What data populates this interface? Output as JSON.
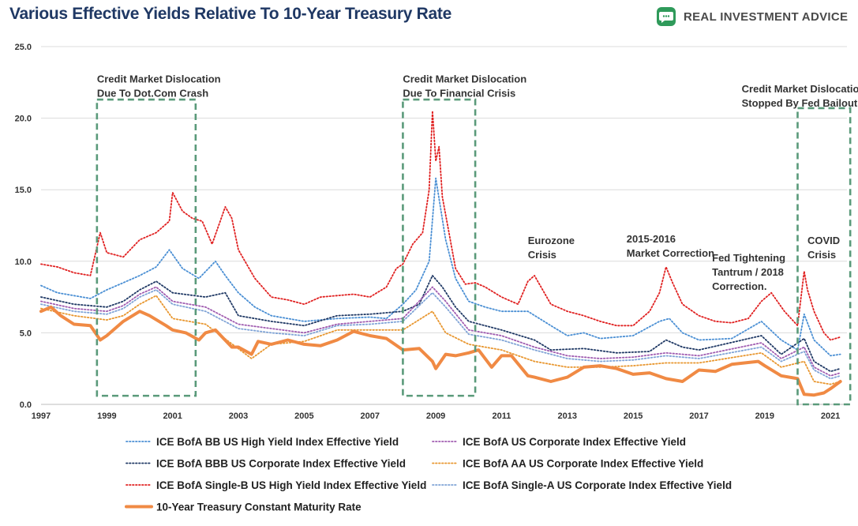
{
  "header": {
    "brand": "REAL INVESTMENT ADVICE",
    "brand_icon": "chat-bubble-icon"
  },
  "chart_data": {
    "type": "line",
    "title": "Various Effective Yields Relative To 10-Year Treasury Rate",
    "xlim": [
      1997,
      2021.5
    ],
    "ylim": [
      0,
      25
    ],
    "x_ticks": [
      "1997",
      "1999",
      "2001",
      "2003",
      "2005",
      "2007",
      "2009",
      "2011",
      "2013",
      "2015",
      "2017",
      "2019",
      "2021"
    ],
    "y_ticks": [
      "0.0",
      "5.0",
      "10.0",
      "15.0",
      "20.0",
      "25.0"
    ],
    "grid": "horizontal",
    "legend_position": "bottom",
    "series": [
      {
        "name": "ICE BofA Single-B US High Yield Index Effective Yield",
        "color": "#e02020",
        "style": "dotted",
        "x": [
          1997,
          1997.5,
          1998,
          1998.5,
          1998.8,
          1999,
          1999.5,
          2000,
          2000.5,
          2000.9,
          2001,
          2001.3,
          2001.6,
          2001.9,
          2002.2,
          2002.6,
          2002.8,
          2003,
          2003.5,
          2004,
          2004.5,
          2005,
          2005.5,
          2006,
          2006.5,
          2007,
          2007.5,
          2007.8,
          2008,
          2008.3,
          2008.6,
          2008.8,
          2008.9,
          2009.0,
          2009.1,
          2009.2,
          2009.4,
          2009.6,
          2009.9,
          2010.2,
          2010.5,
          2011,
          2011.5,
          2011.8,
          2012,
          2012.5,
          2013,
          2013.5,
          2014,
          2014.5,
          2015,
          2015.5,
          2015.8,
          2016.0,
          2016.2,
          2016.5,
          2017,
          2017.5,
          2018,
          2018.5,
          2018.9,
          2019.2,
          2019.6,
          2020.0,
          2020.2,
          2020.3,
          2020.5,
          2020.8,
          2021.0,
          2021.3
        ],
        "values": [
          9.8,
          9.6,
          9.2,
          9.0,
          12.0,
          10.6,
          10.3,
          11.5,
          12.0,
          12.8,
          14.8,
          13.5,
          13.0,
          12.8,
          11.2,
          13.8,
          13.0,
          10.8,
          8.8,
          7.5,
          7.3,
          7.0,
          7.5,
          7.6,
          7.7,
          7.5,
          8.2,
          9.5,
          9.8,
          11.2,
          12.0,
          15.0,
          20.5,
          17.0,
          18.0,
          14.5,
          12.0,
          9.5,
          8.4,
          8.5,
          8.2,
          7.5,
          7.0,
          8.6,
          9.0,
          7.0,
          6.5,
          6.2,
          5.8,
          5.5,
          5.5,
          6.5,
          7.8,
          9.6,
          8.5,
          7.0,
          6.2,
          5.8,
          5.7,
          6.0,
          7.2,
          7.8,
          6.5,
          5.5,
          9.3,
          8.0,
          6.5,
          5.0,
          4.5,
          4.7
        ]
      },
      {
        "name": "ICE BofA BB US High Yield Index Effective Yield",
        "color": "#4a8fd4",
        "style": "dotted",
        "x": [
          1997,
          1997.5,
          1998,
          1998.5,
          1999,
          1999.5,
          2000,
          2000.5,
          2000.9,
          2001.3,
          2001.8,
          2002.3,
          2002.6,
          2003,
          2003.5,
          2004,
          2005,
          2006,
          2007,
          2007.5,
          2008,
          2008.4,
          2008.8,
          2009.0,
          2009.3,
          2009.6,
          2010,
          2010.5,
          2011,
          2011.8,
          2012.5,
          2013,
          2013.5,
          2014,
          2015,
          2015.8,
          2016.1,
          2016.5,
          2017,
          2018,
          2018.9,
          2019.5,
          2020.0,
          2020.2,
          2020.5,
          2021.0,
          2021.3
        ],
        "values": [
          8.3,
          7.8,
          7.6,
          7.4,
          8.0,
          8.5,
          9.0,
          9.6,
          10.8,
          9.5,
          8.8,
          10.0,
          9.0,
          7.8,
          6.8,
          6.2,
          5.8,
          6.0,
          6.1,
          6.0,
          7.0,
          8.0,
          10.0,
          15.8,
          11.5,
          8.8,
          7.2,
          6.8,
          6.5,
          6.5,
          5.5,
          4.8,
          5.0,
          4.6,
          4.8,
          5.8,
          6.0,
          5.0,
          4.5,
          4.6,
          5.8,
          4.5,
          3.8,
          6.3,
          4.5,
          3.4,
          3.5
        ]
      },
      {
        "name": "ICE BofA BBB US Corporate Index Effective Yield",
        "color": "#1f3864",
        "style": "dotted",
        "x": [
          1997,
          1998,
          1999,
          1999.5,
          2000,
          2000.5,
          2001,
          2002,
          2002.6,
          2003,
          2004,
          2005,
          2006,
          2007,
          2008,
          2008.5,
          2008.9,
          2009.2,
          2009.6,
          2010,
          2011,
          2012,
          2012.5,
          2013.5,
          2014.5,
          2015.5,
          2016.0,
          2016.5,
          2017,
          2018.9,
          2019.5,
          2020.2,
          2020.5,
          2021.0,
          2021.3
        ],
        "values": [
          7.5,
          7.0,
          6.8,
          7.2,
          8.0,
          8.6,
          7.8,
          7.5,
          7.8,
          6.2,
          5.8,
          5.5,
          6.2,
          6.3,
          6.5,
          7.0,
          9.0,
          8.2,
          6.8,
          5.8,
          5.2,
          4.5,
          3.8,
          3.9,
          3.6,
          3.7,
          4.5,
          4.0,
          3.8,
          4.8,
          3.5,
          4.6,
          3.0,
          2.3,
          2.5
        ]
      },
      {
        "name": "ICE BofA US Corporate Index Effective Yield",
        "color": "#a05cb0",
        "style": "dotted",
        "x": [
          1997,
          1998,
          1999,
          1999.5,
          2000,
          2000.5,
          2001,
          2002,
          2003,
          2004,
          2005,
          2006,
          2007,
          2008,
          2008.9,
          2009.3,
          2010,
          2011,
          2012,
          2013,
          2014,
          2015,
          2016,
          2017,
          2018.9,
          2019.5,
          2020.2,
          2020.5,
          2021.0,
          2021.3
        ],
        "values": [
          7.2,
          6.7,
          6.5,
          6.9,
          7.7,
          8.2,
          7.2,
          6.8,
          5.6,
          5.3,
          5.0,
          5.6,
          5.8,
          6.0,
          8.2,
          7.2,
          5.2,
          4.8,
          4.0,
          3.4,
          3.2,
          3.3,
          3.6,
          3.4,
          4.3,
          3.2,
          4.0,
          2.6,
          2.0,
          2.2
        ]
      },
      {
        "name": "ICE BofA Single-A US Corporate Index Effective Yield",
        "color": "#7fa3d6",
        "style": "dotted",
        "x": [
          1997,
          1998,
          1999,
          1999.5,
          2000,
          2000.5,
          2001,
          2002,
          2003,
          2004,
          2005,
          2006,
          2007,
          2008,
          2008.9,
          2009.3,
          2010,
          2011,
          2012,
          2013,
          2014,
          2015,
          2016,
          2017,
          2018.9,
          2019.5,
          2020.2,
          2020.5,
          2021.0,
          2021.3
        ],
        "values": [
          7.0,
          6.5,
          6.3,
          6.7,
          7.5,
          8.0,
          7.0,
          6.5,
          5.3,
          5.0,
          4.8,
          5.5,
          5.6,
          5.8,
          7.8,
          6.8,
          4.9,
          4.5,
          3.8,
          3.2,
          3.0,
          3.1,
          3.4,
          3.2,
          4.0,
          3.0,
          3.7,
          2.4,
          1.8,
          2.0
        ]
      },
      {
        "name": "ICE BofA AA US Corporate Index Effective Yield",
        "color": "#e8962e",
        "style": "dotted",
        "x": [
          1997,
          1998,
          1999,
          1999.5,
          2000,
          2000.5,
          2001,
          2002,
          2003.4,
          2004,
          2005,
          2006,
          2007,
          2008,
          2008.9,
          2009.3,
          2010,
          2011,
          2012,
          2013,
          2014,
          2015,
          2016,
          2017,
          2018.9,
          2019.5,
          2020.2,
          2020.5,
          2021.0,
          2021.3
        ],
        "values": [
          6.7,
          6.2,
          5.9,
          6.2,
          7.0,
          7.6,
          6.0,
          5.6,
          3.2,
          4.2,
          4.4,
          5.2,
          5.2,
          5.2,
          6.5,
          5.0,
          4.2,
          3.8,
          3.0,
          2.6,
          2.6,
          2.7,
          2.9,
          2.9,
          3.6,
          2.6,
          3.0,
          1.6,
          1.4,
          1.6
        ]
      },
      {
        "name": "10-Year Treasury Constant Maturity Rate",
        "color": "#f08a44",
        "style": "solid",
        "x": [
          1997,
          1997.3,
          1997.6,
          1998,
          1998.5,
          1998.8,
          1999,
          1999.5,
          2000,
          2000.3,
          2000.8,
          2001,
          2001.4,
          2001.8,
          2002,
          2002.3,
          2002.8,
          2003,
          2003.4,
          2003.6,
          2004,
          2004.5,
          2005,
          2005.5,
          2006,
          2006.5,
          2007,
          2007.5,
          2008,
          2008.5,
          2008.9,
          2009.0,
          2009.3,
          2009.6,
          2010,
          2010.3,
          2010.7,
          2011,
          2011.3,
          2011.8,
          2012,
          2012.5,
          2013,
          2013.5,
          2014,
          2014.5,
          2015,
          2015.5,
          2016,
          2016.5,
          2017,
          2017.5,
          2018,
          2018.8,
          2019,
          2019.5,
          2020,
          2020.2,
          2020.5,
          2020.8,
          2021.0,
          2021.3
        ],
        "values": [
          6.5,
          6.8,
          6.2,
          5.6,
          5.5,
          4.5,
          4.8,
          5.8,
          6.5,
          6.2,
          5.5,
          5.2,
          5.0,
          4.5,
          5.0,
          5.2,
          4.0,
          4.0,
          3.5,
          4.4,
          4.2,
          4.5,
          4.2,
          4.1,
          4.5,
          5.1,
          4.8,
          4.6,
          3.8,
          3.9,
          3.0,
          2.5,
          3.5,
          3.4,
          3.6,
          3.8,
          2.6,
          3.4,
          3.4,
          2.0,
          1.9,
          1.6,
          1.9,
          2.6,
          2.7,
          2.5,
          2.1,
          2.2,
          1.8,
          1.6,
          2.4,
          2.3,
          2.8,
          3.0,
          2.7,
          2.0,
          1.8,
          0.7,
          0.65,
          0.8,
          1.1,
          1.6
        ]
      }
    ],
    "annotations": [
      {
        "lines": [
          "Credit Market Dislocation",
          "Due To Dot.Com Crash"
        ],
        "x": 1998.7,
        "y": 22.5,
        "box": {
          "x0": 1998.7,
          "x1": 2001.7,
          "y0": 0.6,
          "y1": 21.3
        }
      },
      {
        "lines": [
          "Credit Market Dislocation",
          "Due To Financial Crisis"
        ],
        "x": 2008.0,
        "y": 22.5,
        "box": {
          "x0": 2008.0,
          "x1": 2010.2,
          "y0": 0.6,
          "y1": 21.3
        }
      },
      {
        "lines": [
          "Credit Market Dislocation",
          "Stopped By Fed Bailout"
        ],
        "x": 2018.3,
        "y": 21.8,
        "box": {
          "x0": 2020.0,
          "x1": 2021.6,
          "y0": 0.0,
          "y1": 20.7
        }
      },
      {
        "lines": [
          "Eurozone",
          "Crisis"
        ],
        "x": 2011.8,
        "y": 11.2,
        "box": null
      },
      {
        "lines": [
          "2015-2016",
          "Market Correction"
        ],
        "x": 2014.8,
        "y": 11.3,
        "box": null
      },
      {
        "lines": [
          "Fed Tightening",
          "Tantrum / 2018",
          "Correction."
        ],
        "x": 2017.4,
        "y": 10.0,
        "box": null
      },
      {
        "lines": [
          "COVID",
          "Crisis"
        ],
        "x": 2020.3,
        "y": 11.2,
        "box": null
      }
    ]
  }
}
